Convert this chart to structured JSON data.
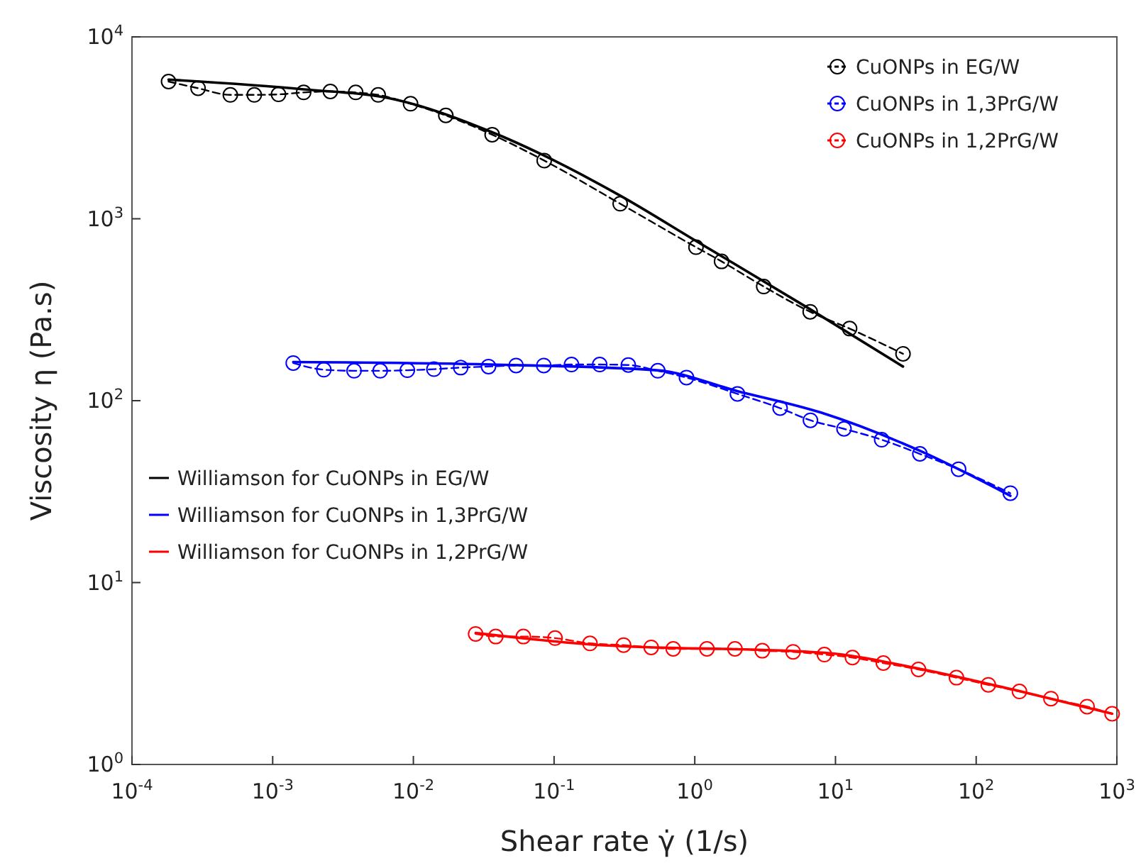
{
  "chart_data": {
    "type": "line",
    "xlabel": "Shear rate γ̇  (1/s)",
    "ylabel": "Viscosity η  (Pa.s)",
    "log": "xy",
    "xlim": [
      0.0001,
      1000
    ],
    "ylim": [
      1,
      10000
    ],
    "xticks": [
      {
        "value": 0.0001,
        "label": "10$^{-4}$"
      },
      {
        "value": 0.001,
        "label": "10$^{-3}$"
      },
      {
        "value": 0.01,
        "label": "10$^{-2}$"
      },
      {
        "value": 0.1,
        "label": "10$^{-1}$"
      },
      {
        "value": 1,
        "label": "10$^{0}$"
      },
      {
        "value": 10,
        "label": "10$^{1}$"
      },
      {
        "value": 100,
        "label": "10$^{2}$"
      },
      {
        "value": 1000,
        "label": "10$^{3}$"
      }
    ],
    "yticks": [
      {
        "value": 1,
        "label": "10$^{0}$"
      },
      {
        "value": 10,
        "label": "10$^{1}$"
      },
      {
        "value": 100,
        "label": "10$^{2}$"
      },
      {
        "value": 1000,
        "label": "10$^{3}$"
      },
      {
        "value": 10000,
        "label": "10$^{4}$"
      }
    ],
    "grid": false,
    "legend": "top right",
    "series": [
      {
        "name": "CuONPs in EG/W",
        "color": "#000000",
        "marker": "circle",
        "line_style": "dashed",
        "x": [
          0.000182,
          0.000295,
          0.0005,
          0.00074,
          0.0011,
          0.00166,
          0.00257,
          0.00389,
          0.00562,
          0.00955,
          0.017,
          0.0363,
          0.0851,
          0.295,
          1.02,
          1.55,
          3.09,
          6.61,
          12.6,
          30.2
        ],
        "values": [
          5680,
          5220,
          4800,
          4800,
          4830,
          4950,
          5010,
          4950,
          4800,
          4290,
          3700,
          2900,
          2090,
          1210,
          698,
          583,
          424,
          308,
          249,
          181
        ]
      },
      {
        "name": "CuONPs in 1,3PrG/W",
        "color": "#0000ff",
        "marker": "circle",
        "line_style": "dashed",
        "x": [
          0.0014,
          0.00231,
          0.00379,
          0.00581,
          0.00906,
          0.014,
          0.0217,
          0.0342,
          0.0537,
          0.0845,
          0.133,
          0.211,
          0.337,
          0.546,
          0.873,
          2.01,
          4.04,
          6.64,
          11.5,
          21.3,
          39.8,
          75,
          175
        ],
        "values": [
          161,
          148,
          146,
          146,
          147,
          149,
          152,
          154,
          156,
          156,
          158,
          158,
          157,
          146,
          134,
          109,
          91,
          78,
          70,
          61,
          51,
          42,
          31
        ]
      },
      {
        "name": "CuONPs in 1,2PrG/W",
        "color": "#ff0000",
        "marker": "circle",
        "line_style": "dashed",
        "x": [
          0.0277,
          0.0385,
          0.0605,
          0.1016,
          0.18,
          0.312,
          0.49,
          0.703,
          1.22,
          1.93,
          3.02,
          5,
          8.34,
          13.2,
          21.9,
          38.9,
          72.4,
          122,
          203,
          340,
          614,
          925
        ],
        "values": [
          5.22,
          5.05,
          5.05,
          4.95,
          4.63,
          4.53,
          4.4,
          4.32,
          4.32,
          4.32,
          4.22,
          4.16,
          4.02,
          3.87,
          3.61,
          3.33,
          3,
          2.74,
          2.52,
          2.3,
          2.08,
          1.9
        ]
      },
      {
        "name": "Williamson for CuONPs in EG/W",
        "color": "#000000",
        "marker": "none",
        "line_style": "solid",
        "x": [
          0.000182,
          0.00166,
          0.0074,
          0.0363,
          0.295,
          1.02,
          6.61,
          30.2
        ],
        "values": [
          5820,
          5150,
          4530,
          2990,
          1340,
          755,
          318,
          154
        ]
      },
      {
        "name": "Williamson for CuONPs in 1,3PrG/W",
        "color": "#0000ff",
        "marker": "none",
        "line_style": "solid",
        "x": [
          0.0014,
          0.0354,
          0.537,
          2,
          7.9,
          39.8,
          175
        ],
        "values": [
          163,
          158,
          147,
          113,
          86,
          53,
          30
        ]
      },
      {
        "name": "Williamson for CuONPs in 1,2PrG/W",
        "color": "#ff0000",
        "marker": "none",
        "line_style": "solid",
        "x": [
          0.0277,
          0.18,
          8.34,
          38.9,
          203,
          925
        ],
        "values": [
          5.28,
          4.57,
          4.11,
          3.37,
          2.53,
          1.9
        ]
      }
    ]
  }
}
